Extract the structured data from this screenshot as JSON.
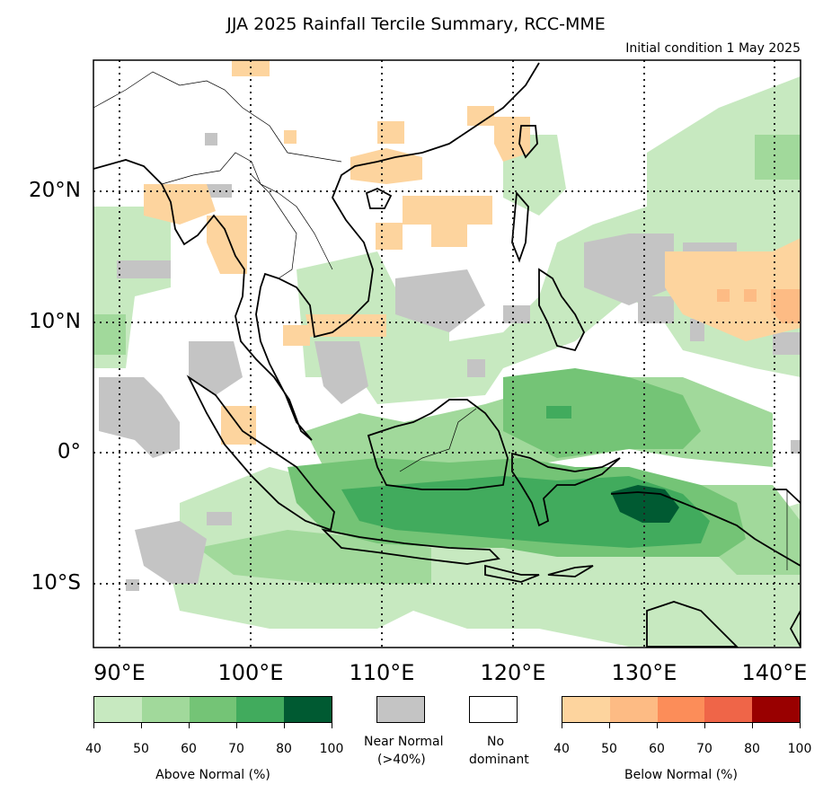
{
  "title": "JJA 2025 Rainfall Tercile Summary, RCC-MME",
  "subtitle": "Initial condition 1 May 2025",
  "map": {
    "lon_range": [
      88,
      142
    ],
    "lat_range": [
      -15,
      30
    ],
    "lat_labels": [
      "20°N",
      "10°N",
      "0°",
      "10°S"
    ],
    "lat_values": [
      20,
      10,
      0,
      -10
    ],
    "lon_labels": [
      "90°E",
      "100°E",
      "110°E",
      "120°E",
      "130°E",
      "140°E"
    ],
    "lon_values": [
      90,
      100,
      110,
      120,
      130,
      140
    ],
    "gridlines": "dotted",
    "colors": {
      "above": [
        "#c7e9c0",
        "#a1d99b",
        "#74c476",
        "#41ab5d",
        "#005a32"
      ],
      "near_normal": "#c4c4c4",
      "no_dominant": "#ffffff",
      "below": [
        "#fdd49e",
        "#fdbb84",
        "#fc8d59",
        "#ef6548",
        "#990000"
      ]
    }
  },
  "legend": {
    "above": {
      "label": "Above Normal (%)",
      "ticks": [
        "40",
        "50",
        "60",
        "70",
        "80",
        "100"
      ]
    },
    "near_normal": {
      "label_line1": "Near Normal",
      "label_line2": "(>40%)"
    },
    "no_dominant": {
      "label_line1": "No",
      "label_line2": "dominant"
    },
    "below": {
      "label": "Below Normal (%)",
      "ticks": [
        "40",
        "50",
        "60",
        "70",
        "80",
        "100"
      ]
    }
  }
}
